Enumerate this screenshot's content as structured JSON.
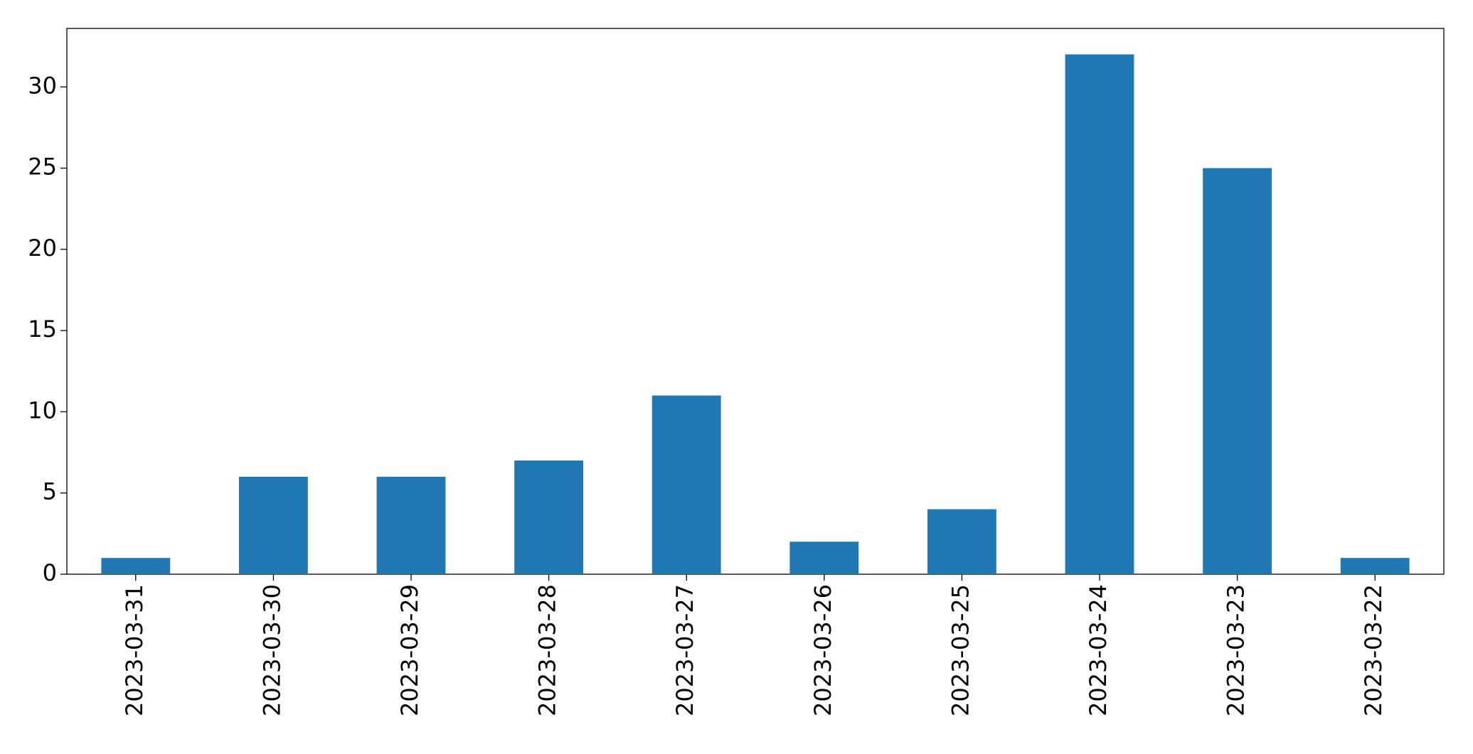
{
  "chart_data": {
    "type": "bar",
    "categories": [
      "2023-03-31",
      "2023-03-30",
      "2023-03-29",
      "2023-03-28",
      "2023-03-27",
      "2023-03-26",
      "2023-03-25",
      "2023-03-24",
      "2023-03-23",
      "2023-03-22"
    ],
    "values": [
      1,
      6,
      6,
      7,
      11,
      2,
      4,
      32,
      25,
      1
    ],
    "color": "#1f77b4",
    "ylim": [
      0,
      33.6
    ],
    "yticks": [
      0,
      5,
      10,
      15,
      20,
      25,
      30
    ],
    "grid": false
  }
}
